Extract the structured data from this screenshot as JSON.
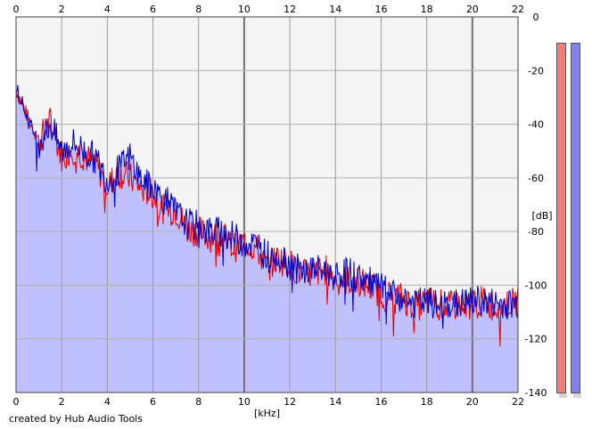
{
  "chart_data": {
    "type": "area",
    "x_ticks": [
      "0",
      "2",
      "4",
      "6",
      "8",
      "10",
      "12",
      "14",
      "16",
      "18",
      "20",
      "22"
    ],
    "y_ticks": [
      "0",
      "-20",
      "-40",
      "-60",
      "-80",
      "-100",
      "-120",
      "-140"
    ],
    "xlabel": "[kHz]",
    "ylabel": "[dB]",
    "xlim": [
      0,
      22
    ],
    "ylim": [
      -140,
      0
    ],
    "grid": true,
    "series": [
      {
        "color": "#e00000",
        "x": [
          0,
          0.5,
          1,
          1.5,
          2,
          2.5,
          3,
          3.5,
          4,
          4.5,
          5,
          5.5,
          6,
          6.5,
          7,
          7.5,
          8,
          8.5,
          9,
          9.5,
          10,
          10.5,
          11,
          11.5,
          12,
          12.5,
          13,
          13.5,
          14,
          14.5,
          15,
          15.5,
          16,
          16.5,
          17,
          17.5,
          18,
          18.5,
          19,
          19.5,
          20,
          20.5,
          21,
          21.5,
          22
        ],
        "values": [
          -27,
          -37,
          -46,
          -39,
          -52,
          -49,
          -52,
          -55,
          -63,
          -58,
          -60,
          -64,
          -66,
          -72,
          -72,
          -79,
          -80,
          -82,
          -81,
          -86,
          -84,
          -86,
          -93,
          -90,
          -92,
          -96,
          -96,
          -94,
          -97,
          -98,
          -99,
          -100,
          -103,
          -104,
          -105,
          -108,
          -106,
          -107,
          -108,
          -107,
          -107,
          -106,
          -108,
          -107,
          -106
        ]
      },
      {
        "color": "#0000c8",
        "x": [
          0,
          0.5,
          1,
          1.5,
          2,
          2.5,
          3,
          3.5,
          4,
          4.5,
          5,
          5.5,
          6,
          6.5,
          7,
          7.5,
          8,
          8.5,
          9,
          9.5,
          10,
          10.5,
          11,
          11.5,
          12,
          12.5,
          13,
          13.5,
          14,
          14.5,
          15,
          15.5,
          16,
          16.5,
          17,
          17.5,
          18,
          18.5,
          19,
          19.5,
          20,
          20.5,
          21,
          21.5,
          22
        ],
        "values": [
          -25,
          -38,
          -47,
          -40,
          -50,
          -47,
          -50,
          -53,
          -61,
          -57,
          -52,
          -61,
          -64,
          -68,
          -73,
          -77,
          -78,
          -80,
          -80,
          -82,
          -84,
          -85,
          -89,
          -88,
          -92,
          -95,
          -94,
          -95,
          -96,
          -95,
          -97,
          -99,
          -101,
          -104,
          -105,
          -107,
          -106,
          -108,
          -107,
          -107,
          -106,
          -106,
          -107,
          -107,
          -107
        ]
      }
    ],
    "fill_color": "#c0c0ff"
  },
  "meters": [
    {
      "color": "#f08080"
    },
    {
      "color": "#8080f0"
    }
  ],
  "credit": "created by Hub Audio Tools"
}
